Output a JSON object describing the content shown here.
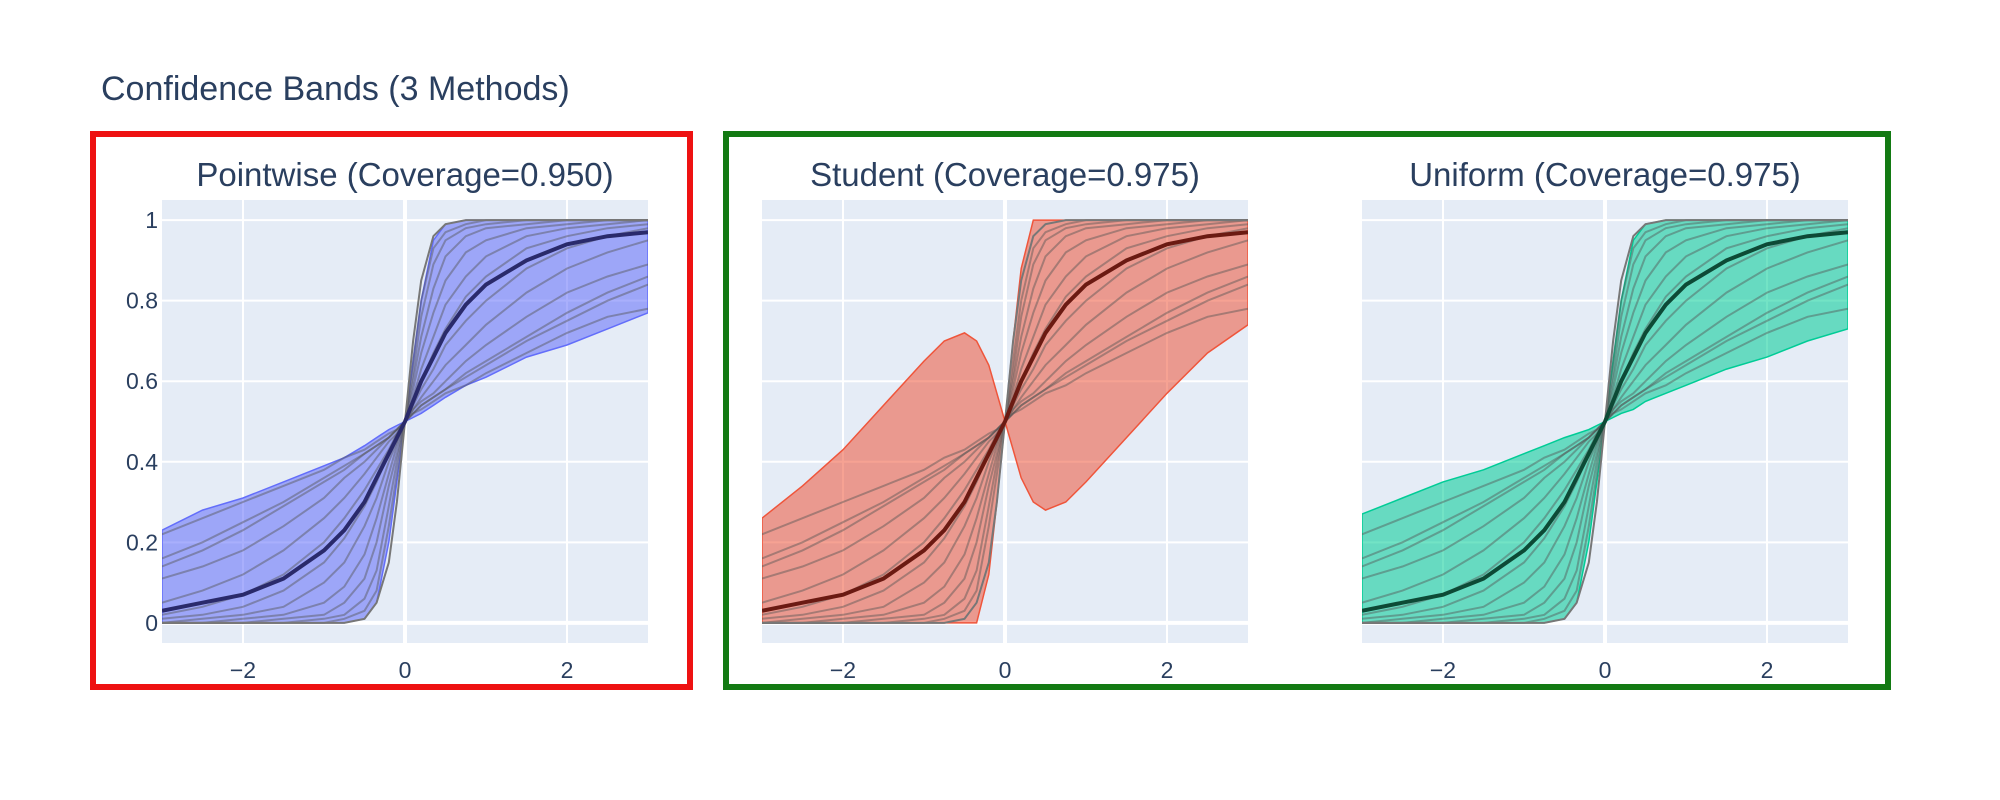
{
  "title": "Confidence Bands (3 Methods)",
  "group_colors": {
    "pointwise_box": "#ee1111",
    "simultaneous_box": "#137a13"
  },
  "chart_data": [
    {
      "type": "line",
      "title": "Pointwise (Coverage=0.950)",
      "band_color": "#636efa",
      "xlim": [
        -3,
        3
      ],
      "ylim": [
        -0.05,
        1.05
      ],
      "xticks": [
        -2,
        0,
        2
      ],
      "xtick_labels": [
        "−2",
        "0",
        "2"
      ],
      "yticks": [
        0,
        0.2,
        0.4,
        0.6,
        0.8,
        1
      ],
      "ytick_labels": [
        "0",
        "0.2",
        "0.4",
        "0.6",
        "0.8",
        "1"
      ],
      "x": [
        -3,
        -2.5,
        -2,
        -1.5,
        -1,
        -0.75,
        -0.5,
        -0.35,
        -0.2,
        -0.1,
        0,
        0.1,
        0.2,
        0.35,
        0.5,
        0.75,
        1,
        1.5,
        2,
        2.5,
        3
      ],
      "band_upper": [
        0.23,
        0.28,
        0.31,
        0.35,
        0.39,
        0.41,
        0.44,
        0.46,
        0.48,
        0.49,
        0.5,
        0.65,
        0.8,
        0.95,
        0.99,
        1.0,
        1.0,
        1.0,
        1.0,
        1.0,
        1.0
      ],
      "band_lower": [
        0.0,
        0.0,
        0.0,
        0.0,
        0.0,
        0.0,
        0.01,
        0.05,
        0.2,
        0.35,
        0.5,
        0.51,
        0.52,
        0.54,
        0.56,
        0.59,
        0.61,
        0.66,
        0.69,
        0.73,
        0.77
      ],
      "mean": [
        0.03,
        0.05,
        0.07,
        0.11,
        0.18,
        0.23,
        0.3,
        0.36,
        0.42,
        0.46,
        0.5,
        0.55,
        0.6,
        0.66,
        0.72,
        0.79,
        0.84,
        0.9,
        0.94,
        0.96,
        0.97
      ],
      "reference": [
        0.0,
        0.0,
        0.0,
        0.0,
        0.0,
        0.0,
        0.01,
        0.05,
        0.15,
        0.3,
        0.5,
        0.7,
        0.85,
        0.96,
        0.99,
        1.0,
        1.0,
        1.0,
        1.0,
        1.0,
        1.0
      ],
      "samples": [
        [
          0.22,
          0.26,
          0.3,
          0.34,
          0.38,
          0.41,
          0.43,
          0.45,
          0.47,
          0.48,
          0.5,
          0.52,
          0.53,
          0.55,
          0.57,
          0.59,
          0.62,
          0.67,
          0.72,
          0.76,
          0.78
        ],
        [
          0.16,
          0.2,
          0.25,
          0.3,
          0.36,
          0.39,
          0.42,
          0.44,
          0.46,
          0.48,
          0.5,
          0.52,
          0.54,
          0.56,
          0.58,
          0.61,
          0.64,
          0.7,
          0.75,
          0.8,
          0.84
        ],
        [
          0.14,
          0.18,
          0.23,
          0.29,
          0.35,
          0.38,
          0.42,
          0.44,
          0.46,
          0.48,
          0.5,
          0.52,
          0.54,
          0.56,
          0.58,
          0.62,
          0.65,
          0.71,
          0.77,
          0.82,
          0.86
        ],
        [
          0.11,
          0.14,
          0.18,
          0.24,
          0.31,
          0.36,
          0.4,
          0.43,
          0.46,
          0.48,
          0.5,
          0.53,
          0.55,
          0.57,
          0.6,
          0.65,
          0.69,
          0.76,
          0.82,
          0.86,
          0.89
        ],
        [
          0.05,
          0.08,
          0.12,
          0.18,
          0.26,
          0.31,
          0.37,
          0.41,
          0.45,
          0.47,
          0.5,
          0.53,
          0.56,
          0.6,
          0.64,
          0.69,
          0.74,
          0.82,
          0.88,
          0.92,
          0.95
        ],
        [
          0.02,
          0.04,
          0.07,
          0.12,
          0.2,
          0.26,
          0.33,
          0.38,
          0.43,
          0.47,
          0.5,
          0.54,
          0.58,
          0.63,
          0.69,
          0.75,
          0.8,
          0.88,
          0.93,
          0.96,
          0.98
        ],
        [
          0.01,
          0.02,
          0.04,
          0.08,
          0.15,
          0.21,
          0.29,
          0.35,
          0.42,
          0.46,
          0.5,
          0.55,
          0.6,
          0.67,
          0.73,
          0.81,
          0.86,
          0.93,
          0.96,
          0.98,
          0.99
        ],
        [
          0.0,
          0.01,
          0.02,
          0.04,
          0.1,
          0.15,
          0.24,
          0.31,
          0.4,
          0.45,
          0.5,
          0.56,
          0.63,
          0.71,
          0.79,
          0.86,
          0.91,
          0.96,
          0.98,
          0.99,
          1.0
        ],
        [
          0.0,
          0.0,
          0.01,
          0.02,
          0.05,
          0.09,
          0.17,
          0.26,
          0.37,
          0.44,
          0.5,
          0.58,
          0.67,
          0.77,
          0.85,
          0.92,
          0.95,
          0.98,
          0.99,
          1.0,
          1.0
        ],
        [
          0.0,
          0.0,
          0.0,
          0.01,
          0.02,
          0.05,
          0.11,
          0.2,
          0.34,
          0.42,
          0.5,
          0.6,
          0.71,
          0.83,
          0.91,
          0.96,
          0.98,
          0.99,
          1.0,
          1.0,
          1.0
        ],
        [
          0.0,
          0.0,
          0.0,
          0.0,
          0.01,
          0.02,
          0.06,
          0.13,
          0.29,
          0.4,
          0.5,
          0.62,
          0.76,
          0.89,
          0.95,
          0.98,
          0.99,
          1.0,
          1.0,
          1.0,
          1.0
        ],
        [
          0.0,
          0.0,
          0.0,
          0.0,
          0.0,
          0.01,
          0.03,
          0.08,
          0.24,
          0.37,
          0.5,
          0.65,
          0.8,
          0.93,
          0.97,
          0.99,
          1.0,
          1.0,
          1.0,
          1.0,
          1.0
        ]
      ]
    },
    {
      "type": "line",
      "title": "Student (Coverage=0.975)",
      "band_color": "#ef553b",
      "xlim": [
        -3,
        3
      ],
      "ylim": [
        -0.05,
        1.05
      ],
      "xticks": [
        -2,
        0,
        2
      ],
      "xtick_labels": [
        "−2",
        "0",
        "2"
      ],
      "yticks": [
        0,
        0.2,
        0.4,
        0.6,
        0.8,
        1
      ],
      "ytick_labels": [
        "0",
        "0.2",
        "0.4",
        "0.6",
        "0.8",
        "1"
      ],
      "x": [
        -3,
        -2.5,
        -2,
        -1.5,
        -1,
        -0.75,
        -0.5,
        -0.35,
        -0.2,
        -0.1,
        0,
        0.1,
        0.2,
        0.35,
        0.5,
        0.75,
        1,
        1.5,
        2,
        2.5,
        3
      ],
      "band_upper": [
        0.26,
        0.34,
        0.43,
        0.54,
        0.65,
        0.7,
        0.72,
        0.7,
        0.64,
        0.57,
        0.5,
        0.7,
        0.88,
        1.0,
        1.0,
        1.0,
        1.0,
        1.0,
        1.0,
        1.0,
        1.0
      ],
      "band_lower": [
        0.0,
        0.0,
        0.0,
        0.0,
        0.0,
        0.0,
        0.0,
        0.0,
        0.12,
        0.3,
        0.5,
        0.43,
        0.36,
        0.3,
        0.28,
        0.3,
        0.35,
        0.46,
        0.57,
        0.67,
        0.74
      ],
      "mean": [
        0.03,
        0.05,
        0.07,
        0.11,
        0.18,
        0.23,
        0.3,
        0.36,
        0.42,
        0.46,
        0.5,
        0.55,
        0.6,
        0.66,
        0.72,
        0.79,
        0.84,
        0.9,
        0.94,
        0.96,
        0.97
      ],
      "reference": [
        0.0,
        0.0,
        0.0,
        0.0,
        0.0,
        0.0,
        0.01,
        0.05,
        0.15,
        0.3,
        0.5,
        0.7,
        0.85,
        0.96,
        0.99,
        1.0,
        1.0,
        1.0,
        1.0,
        1.0,
        1.0
      ],
      "samples": [
        [
          0.22,
          0.26,
          0.3,
          0.34,
          0.38,
          0.41,
          0.43,
          0.45,
          0.47,
          0.48,
          0.5,
          0.52,
          0.53,
          0.55,
          0.57,
          0.59,
          0.62,
          0.67,
          0.72,
          0.76,
          0.78
        ],
        [
          0.16,
          0.2,
          0.25,
          0.3,
          0.36,
          0.39,
          0.42,
          0.44,
          0.46,
          0.48,
          0.5,
          0.52,
          0.54,
          0.56,
          0.58,
          0.61,
          0.64,
          0.7,
          0.75,
          0.8,
          0.84
        ],
        [
          0.14,
          0.18,
          0.23,
          0.29,
          0.35,
          0.38,
          0.42,
          0.44,
          0.46,
          0.48,
          0.5,
          0.52,
          0.54,
          0.56,
          0.58,
          0.62,
          0.65,
          0.71,
          0.77,
          0.82,
          0.86
        ],
        [
          0.11,
          0.14,
          0.18,
          0.24,
          0.31,
          0.36,
          0.4,
          0.43,
          0.46,
          0.48,
          0.5,
          0.53,
          0.55,
          0.57,
          0.6,
          0.65,
          0.69,
          0.76,
          0.82,
          0.86,
          0.89
        ],
        [
          0.05,
          0.08,
          0.12,
          0.18,
          0.26,
          0.31,
          0.37,
          0.41,
          0.45,
          0.47,
          0.5,
          0.53,
          0.56,
          0.6,
          0.64,
          0.69,
          0.74,
          0.82,
          0.88,
          0.92,
          0.95
        ],
        [
          0.02,
          0.04,
          0.07,
          0.12,
          0.2,
          0.26,
          0.33,
          0.38,
          0.43,
          0.47,
          0.5,
          0.54,
          0.58,
          0.63,
          0.69,
          0.75,
          0.8,
          0.88,
          0.93,
          0.96,
          0.98
        ],
        [
          0.01,
          0.02,
          0.04,
          0.08,
          0.15,
          0.21,
          0.29,
          0.35,
          0.42,
          0.46,
          0.5,
          0.55,
          0.6,
          0.67,
          0.73,
          0.81,
          0.86,
          0.93,
          0.96,
          0.98,
          0.99
        ],
        [
          0.0,
          0.01,
          0.02,
          0.04,
          0.1,
          0.15,
          0.24,
          0.31,
          0.4,
          0.45,
          0.5,
          0.56,
          0.63,
          0.71,
          0.79,
          0.86,
          0.91,
          0.96,
          0.98,
          0.99,
          1.0
        ],
        [
          0.0,
          0.0,
          0.01,
          0.02,
          0.05,
          0.09,
          0.17,
          0.26,
          0.37,
          0.44,
          0.5,
          0.58,
          0.67,
          0.77,
          0.85,
          0.92,
          0.95,
          0.98,
          0.99,
          1.0,
          1.0
        ],
        [
          0.0,
          0.0,
          0.0,
          0.01,
          0.02,
          0.05,
          0.11,
          0.2,
          0.34,
          0.42,
          0.5,
          0.6,
          0.71,
          0.83,
          0.91,
          0.96,
          0.98,
          0.99,
          1.0,
          1.0,
          1.0
        ],
        [
          0.0,
          0.0,
          0.0,
          0.0,
          0.01,
          0.02,
          0.06,
          0.13,
          0.29,
          0.4,
          0.5,
          0.62,
          0.76,
          0.89,
          0.95,
          0.98,
          0.99,
          1.0,
          1.0,
          1.0,
          1.0
        ],
        [
          0.0,
          0.0,
          0.0,
          0.0,
          0.0,
          0.01,
          0.03,
          0.08,
          0.24,
          0.37,
          0.5,
          0.65,
          0.8,
          0.93,
          0.97,
          0.99,
          1.0,
          1.0,
          1.0,
          1.0,
          1.0
        ]
      ]
    },
    {
      "type": "line",
      "title": "Uniform (Coverage=0.975)",
      "band_color": "#00cc96",
      "xlim": [
        -3,
        3
      ],
      "ylim": [
        -0.05,
        1.05
      ],
      "xticks": [
        -2,
        0,
        2
      ],
      "xtick_labels": [
        "−2",
        "0",
        "2"
      ],
      "yticks": [
        0,
        0.2,
        0.4,
        0.6,
        0.8,
        1
      ],
      "ytick_labels": [
        "0",
        "0.2",
        "0.4",
        "0.6",
        "0.8",
        "1"
      ],
      "x": [
        -3,
        -2.5,
        -2,
        -1.5,
        -1,
        -0.75,
        -0.5,
        -0.35,
        -0.2,
        -0.1,
        0,
        0.1,
        0.2,
        0.35,
        0.5,
        0.75,
        1,
        1.5,
        2,
        2.5,
        3
      ],
      "band_upper": [
        0.27,
        0.31,
        0.35,
        0.38,
        0.42,
        0.44,
        0.46,
        0.47,
        0.48,
        0.49,
        0.5,
        0.65,
        0.8,
        0.95,
        0.99,
        1.0,
        1.0,
        1.0,
        1.0,
        1.0,
        1.0
      ],
      "band_lower": [
        0.0,
        0.0,
        0.0,
        0.0,
        0.0,
        0.0,
        0.01,
        0.05,
        0.2,
        0.35,
        0.5,
        0.51,
        0.52,
        0.53,
        0.55,
        0.57,
        0.59,
        0.63,
        0.66,
        0.7,
        0.73
      ],
      "mean": [
        0.03,
        0.05,
        0.07,
        0.11,
        0.18,
        0.23,
        0.3,
        0.36,
        0.42,
        0.46,
        0.5,
        0.55,
        0.6,
        0.66,
        0.72,
        0.79,
        0.84,
        0.9,
        0.94,
        0.96,
        0.97
      ],
      "reference": [
        0.0,
        0.0,
        0.0,
        0.0,
        0.0,
        0.0,
        0.01,
        0.05,
        0.15,
        0.3,
        0.5,
        0.7,
        0.85,
        0.96,
        0.99,
        1.0,
        1.0,
        1.0,
        1.0,
        1.0,
        1.0
      ],
      "samples": [
        [
          0.22,
          0.26,
          0.3,
          0.34,
          0.38,
          0.41,
          0.43,
          0.45,
          0.47,
          0.48,
          0.5,
          0.52,
          0.53,
          0.55,
          0.57,
          0.59,
          0.62,
          0.67,
          0.72,
          0.76,
          0.78
        ],
        [
          0.16,
          0.2,
          0.25,
          0.3,
          0.36,
          0.39,
          0.42,
          0.44,
          0.46,
          0.48,
          0.5,
          0.52,
          0.54,
          0.56,
          0.58,
          0.61,
          0.64,
          0.7,
          0.75,
          0.8,
          0.84
        ],
        [
          0.14,
          0.18,
          0.23,
          0.29,
          0.35,
          0.38,
          0.42,
          0.44,
          0.46,
          0.48,
          0.5,
          0.52,
          0.54,
          0.56,
          0.58,
          0.62,
          0.65,
          0.71,
          0.77,
          0.82,
          0.86
        ],
        [
          0.11,
          0.14,
          0.18,
          0.24,
          0.31,
          0.36,
          0.4,
          0.43,
          0.46,
          0.48,
          0.5,
          0.53,
          0.55,
          0.57,
          0.6,
          0.65,
          0.69,
          0.76,
          0.82,
          0.86,
          0.89
        ],
        [
          0.05,
          0.08,
          0.12,
          0.18,
          0.26,
          0.31,
          0.37,
          0.41,
          0.45,
          0.47,
          0.5,
          0.53,
          0.56,
          0.6,
          0.64,
          0.69,
          0.74,
          0.82,
          0.88,
          0.92,
          0.95
        ],
        [
          0.02,
          0.04,
          0.07,
          0.12,
          0.2,
          0.26,
          0.33,
          0.38,
          0.43,
          0.47,
          0.5,
          0.54,
          0.58,
          0.63,
          0.69,
          0.75,
          0.8,
          0.88,
          0.93,
          0.96,
          0.98
        ],
        [
          0.01,
          0.02,
          0.04,
          0.08,
          0.15,
          0.21,
          0.29,
          0.35,
          0.42,
          0.46,
          0.5,
          0.55,
          0.6,
          0.67,
          0.73,
          0.81,
          0.86,
          0.93,
          0.96,
          0.98,
          0.99
        ],
        [
          0.0,
          0.01,
          0.02,
          0.04,
          0.1,
          0.15,
          0.24,
          0.31,
          0.4,
          0.45,
          0.5,
          0.56,
          0.63,
          0.71,
          0.79,
          0.86,
          0.91,
          0.96,
          0.98,
          0.99,
          1.0
        ],
        [
          0.0,
          0.0,
          0.01,
          0.02,
          0.05,
          0.09,
          0.17,
          0.26,
          0.37,
          0.44,
          0.5,
          0.58,
          0.67,
          0.77,
          0.85,
          0.92,
          0.95,
          0.98,
          0.99,
          1.0,
          1.0
        ],
        [
          0.0,
          0.0,
          0.0,
          0.01,
          0.02,
          0.05,
          0.11,
          0.2,
          0.34,
          0.42,
          0.5,
          0.6,
          0.71,
          0.83,
          0.91,
          0.96,
          0.98,
          0.99,
          1.0,
          1.0,
          1.0
        ],
        [
          0.0,
          0.0,
          0.0,
          0.0,
          0.01,
          0.02,
          0.06,
          0.13,
          0.29,
          0.4,
          0.5,
          0.62,
          0.76,
          0.89,
          0.95,
          0.98,
          0.99,
          1.0,
          1.0,
          1.0,
          1.0
        ],
        [
          0.0,
          0.0,
          0.0,
          0.0,
          0.0,
          0.01,
          0.03,
          0.08,
          0.24,
          0.37,
          0.5,
          0.65,
          0.8,
          0.93,
          0.97,
          0.99,
          1.0,
          1.0,
          1.0,
          1.0,
          1.0
        ]
      ]
    }
  ]
}
